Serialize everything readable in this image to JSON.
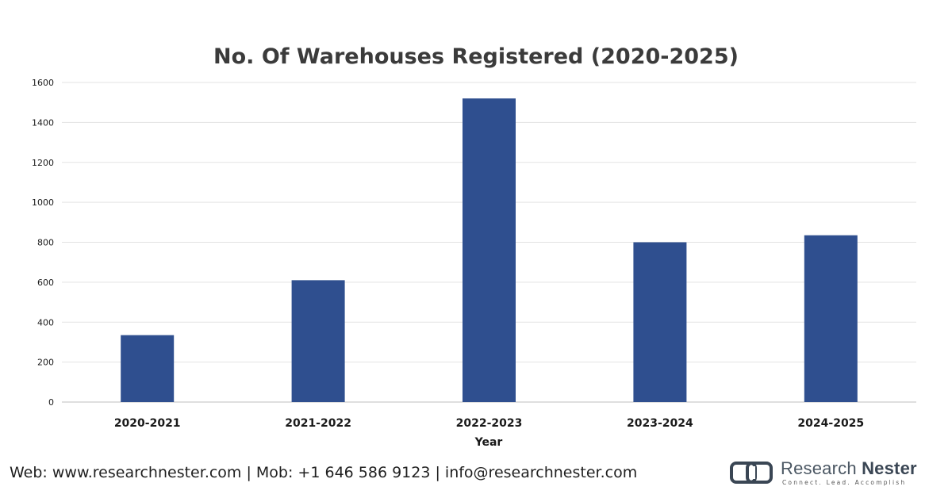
{
  "chart_data": {
    "type": "bar",
    "title": "No. Of Warehouses Registered (2020-2025)",
    "xlabel": "Year",
    "ylabel": "",
    "categories": [
      "2020-2021",
      "2021-2022",
      "2022-2023",
      "2023-2024",
      "2024-2025"
    ],
    "values": [
      335,
      610,
      1520,
      800,
      835
    ],
    "ylim": [
      0,
      1600
    ],
    "yticks": [
      0,
      200,
      400,
      600,
      800,
      1000,
      1200,
      1400,
      1600
    ],
    "grid": true,
    "bar_color": "#2f4f8f"
  },
  "footer": {
    "contact": "Web: www.researchnester.com | Mob: +1 646 586 9123 | info@researchnester.com"
  },
  "brand": {
    "name_light": "Research ",
    "name_bold": "Nester",
    "tagline": "Connect. Lead. Accomplish"
  }
}
